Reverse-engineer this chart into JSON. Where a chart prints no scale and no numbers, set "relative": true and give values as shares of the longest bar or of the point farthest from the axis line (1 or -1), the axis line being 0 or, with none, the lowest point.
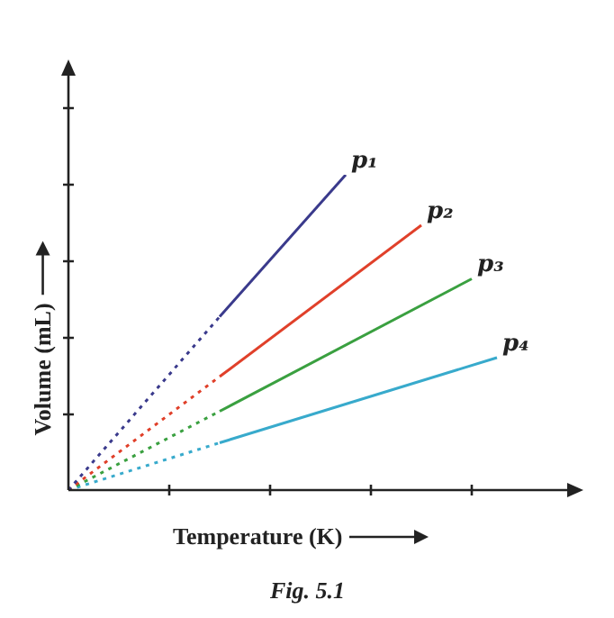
{
  "chart_data": {
    "type": "line",
    "relative": true,
    "xlabel": "Temperature (K)",
    "ylabel": "Volume (mL)",
    "annotations": [
      "Fig. 5.1"
    ],
    "legend": false,
    "marker": "none",
    "categories": [
      null,
      null,
      null,
      null,
      null,
      null,
      null,
      null,
      null,
      null,
      null,
      null,
      null,
      null,
      null,
      null,
      null,
      null,
      null,
      null
    ],
    "series": [
      {
        "color": "#3a3a8c",
        "line_style": "dotted",
        "values": [
          0,
          null,
          null,
          null,
          null,
          null,
          0.55,
          null,
          null,
          null,
          null,
          null,
          null,
          null,
          null,
          null,
          null,
          null,
          null,
          null
        ]
      },
      {
        "name": "p₁",
        "color": "#3a3a8c",
        "line_style": "solid",
        "values": [
          null,
          null,
          null,
          null,
          null,
          null,
          0.55,
          null,
          null,
          null,
          null,
          1,
          null,
          null,
          null,
          null,
          null,
          null,
          null,
          null
        ]
      },
      {
        "color": "#e0402a",
        "line_style": "dotted",
        "values": [
          0,
          null,
          null,
          null,
          null,
          null,
          0.36,
          null,
          null,
          null,
          null,
          null,
          null,
          null,
          null,
          null,
          null,
          null,
          null,
          null
        ]
      },
      {
        "name": "p₂",
        "color": "#e0402a",
        "line_style": "solid",
        "values": [
          null,
          null,
          null,
          null,
          null,
          null,
          0.36,
          null,
          null,
          null,
          null,
          null,
          null,
          null,
          0.84,
          null,
          null,
          null,
          null,
          null
        ]
      },
      {
        "color": "#3aa040",
        "line_style": "dotted",
        "values": [
          0,
          null,
          null,
          null,
          null,
          null,
          0.25,
          null,
          null,
          null,
          null,
          null,
          null,
          null,
          null,
          null,
          null,
          null,
          null,
          null
        ]
      },
      {
        "name": "p₃",
        "color": "#3aa040",
        "line_style": "solid",
        "values": [
          null,
          null,
          null,
          null,
          null,
          null,
          0.25,
          null,
          null,
          null,
          null,
          null,
          null,
          null,
          null,
          null,
          0.67,
          null,
          null,
          null
        ]
      },
      {
        "color": "#38aacc",
        "line_style": "dotted",
        "values": [
          0,
          null,
          null,
          null,
          null,
          null,
          0.15,
          null,
          null,
          null,
          null,
          null,
          null,
          null,
          null,
          null,
          null,
          null,
          null,
          null
        ]
      },
      {
        "name": "p₄",
        "color": "#38aacc",
        "line_style": "solid",
        "values": [
          null,
          null,
          null,
          null,
          null,
          null,
          0.15,
          null,
          null,
          null,
          null,
          null,
          null,
          null,
          null,
          null,
          null,
          0.42,
          null,
          null
        ]
      }
    ]
  }
}
